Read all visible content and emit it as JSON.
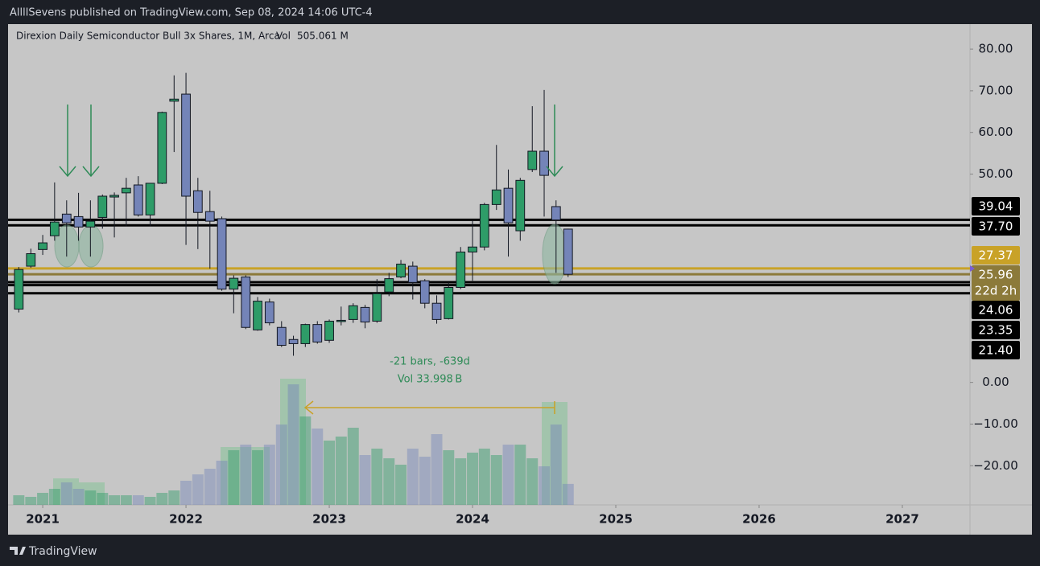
{
  "header": {
    "text": "AllllSevens published on TradingView.com, Sep 08, 2024 14:06 UTC-4"
  },
  "footer": {
    "brand": "TradingView"
  },
  "chart_data": {
    "type": "candlestick",
    "legend": {
      "title": "Direxion Daily Semiconductor Bull 3x Shares, 1M, Arca",
      "vol_name": "Vol"
    },
    "up_color": "#2e9c68",
    "down_color": "#7484b8",
    "xlim": [
      2020.758,
      2027.472
    ],
    "xticks": [
      2021,
      2022,
      2023,
      2024,
      2025,
      2026,
      2027
    ],
    "ylim": [
      -29.4,
      86
    ],
    "yticks": [
      {
        "value": 80,
        "label": "80.00"
      },
      {
        "value": 70,
        "label": "70.00"
      },
      {
        "value": 60,
        "label": "60.00"
      },
      {
        "value": 50,
        "label": "50.00"
      },
      {
        "value": 0,
        "label": "0.00"
      },
      {
        "value": -10,
        "label": "−10.00"
      },
      {
        "value": -20,
        "label": "−20.00"
      }
    ],
    "x": [
      2020.833,
      2020.917,
      2021,
      2021.083,
      2021.167,
      2021.25,
      2021.333,
      2021.417,
      2021.5,
      2021.583,
      2021.667,
      2021.75,
      2021.833,
      2021.917,
      2022,
      2022.083,
      2022.167,
      2022.25,
      2022.333,
      2022.417,
      2022.5,
      2022.583,
      2022.667,
      2022.75,
      2022.833,
      2022.917,
      2023,
      2023.083,
      2023.167,
      2023.25,
      2023.333,
      2023.417,
      2023.5,
      2023.583,
      2023.667,
      2023.75,
      2023.833,
      2023.917,
      2024,
      2024.083,
      2024.167,
      2024.25,
      2024.333,
      2024.417,
      2024.5,
      2024.583,
      2024.667
    ],
    "open": [
      17.6,
      27.9,
      31.9,
      35.2,
      40.4,
      39.8,
      37.3,
      39.6,
      44.5,
      45.5,
      47.4,
      40.2,
      47.8,
      67.5,
      69.2,
      46,
      41,
      39.3,
      22.4,
      25.3,
      12.6,
      19.3,
      13.2,
      10.3,
      9.3,
      13.9,
      10.1,
      14.7,
      15.1,
      18,
      14.7,
      21.7,
      25.3,
      27.9,
      24.4,
      19,
      15.3,
      22.8,
      31.3,
      32.5,
      42.7,
      46.6,
      36.4,
      51.1,
      55.5,
      42.2,
      36.8
    ],
    "high": [
      27.7,
      32.1,
      35.4,
      48,
      43.7,
      45.5,
      43.7,
      45.1,
      45.6,
      49.1,
      49.5,
      47.8,
      65,
      73.7,
      74.3,
      49.1,
      46,
      39.8,
      25.7,
      25.7,
      20.5,
      20.1,
      14.7,
      11.2,
      14.1,
      14.7,
      15.1,
      18.2,
      19,
      18.6,
      24.8,
      26.3,
      29.4,
      29,
      24.8,
      20.9,
      24,
      32.5,
      38.9,
      43.1,
      57,
      51.1,
      49.1,
      66.3,
      70.2,
      43.7,
      36.9
    ],
    "low": [
      16.8,
      27.5,
      30.6,
      34,
      30.2,
      34,
      30.2,
      36.9,
      34.8,
      37.5,
      39.8,
      37.5,
      47.6,
      55.3,
      33,
      32,
      27.3,
      22,
      16.6,
      12.8,
      12.4,
      13.7,
      8.5,
      6.4,
      8.5,
      9.3,
      9.5,
      13.7,
      14.3,
      13,
      14.3,
      20.7,
      25,
      19.9,
      17.8,
      14.1,
      15.1,
      22.4,
      24.4,
      31.7,
      41.4,
      30.2,
      34,
      50.5,
      39.8,
      26.3,
      25.3
    ],
    "close": [
      27.1,
      30.9,
      33.5,
      38.5,
      38.3,
      37.3,
      38.7,
      44.7,
      44.9,
      46.6,
      40.2,
      47.8,
      64.8,
      68,
      44.7,
      40.8,
      38.7,
      22.4,
      25,
      13.2,
      19.5,
      14.3,
      8.9,
      9.3,
      13.9,
      9.7,
      14.7,
      14.9,
      18.4,
      14.5,
      21.3,
      24.9,
      28.4,
      24,
      19,
      15.1,
      22.8,
      31.3,
      32.5,
      42.7,
      46.2,
      38.3,
      48.5,
      55.5,
      49.7,
      39,
      25.96
    ],
    "volume": {
      "vlim": [
        0,
        3000
      ],
      "values": [
        232,
        194,
        290,
        387,
        542,
        387,
        348,
        290,
        232,
        232,
        232,
        194,
        290,
        348,
        581,
        735,
        871,
        1064,
        1316,
        1451,
        1316,
        1451,
        1935,
        2903,
        2129,
        1838,
        1548,
        1645,
        1858,
        1200,
        1355,
        1122,
        968,
        1355,
        1161,
        1703,
        1316,
        1122,
        1258,
        1355,
        1200,
        1451,
        1451,
        1122,
        929,
        1935,
        505.061
      ],
      "last_label": "505.061 M"
    },
    "price_lines": [
      {
        "value": 39.04,
        "label": "39.04",
        "color": "#000000",
        "text_color": "#ffffff"
      },
      {
        "value": 37.7,
        "label": "37.70",
        "color": "#000000",
        "text_color": "#ffffff"
      },
      {
        "value": 27.37,
        "label": "27.37",
        "color": "#c9a227",
        "text_color": "#ffffff"
      },
      {
        "value": 25.96,
        "label": "25.96",
        "color": "#8c7a3a",
        "text_color": "#ffffff",
        "countdown": "22d 2h"
      },
      {
        "value": 24.06,
        "label": "24.06",
        "color": "#000000",
        "text_color": "#ffffff"
      },
      {
        "value": 23.35,
        "label": "23.35",
        "color": "#000000",
        "text_color": "#ffffff"
      },
      {
        "value": 21.4,
        "label": "21.40",
        "color": "#000000",
        "text_color": "#ffffff"
      }
    ],
    "annotations": {
      "range": "-21 bars, -639d",
      "range_volume": "Vol 33.998 B"
    }
  }
}
